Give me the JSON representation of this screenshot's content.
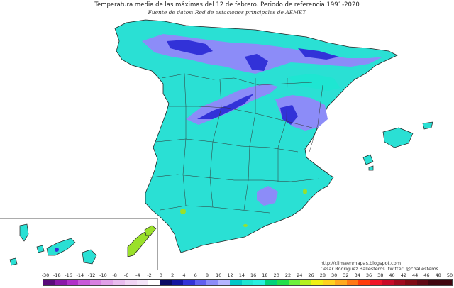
{
  "title": "Temperatura media de las máximas del 12 de febrero. Periodo de referencia 1991-2020",
  "subtitle": "Fuente de datos: Red de estaciones principales de AEMET",
  "credits": {
    "url": "http://climaenmapas.blogspot.com",
    "author": "César Rodríguez Ballesteros. twitter: @cballesteros"
  },
  "legend": {
    "labels": [
      "-30",
      "-18",
      "-16",
      "-14",
      "-12",
      "-10",
      "-8",
      "-6",
      "-4",
      "-2",
      "0",
      "2",
      "4",
      "6",
      "8",
      "10",
      "12",
      "14",
      "16",
      "18",
      "20",
      "22",
      "24",
      "26",
      "28",
      "30",
      "32",
      "34",
      "36",
      "38",
      "40",
      "42",
      "44",
      "46",
      "48",
      "50"
    ],
    "colors": [
      "#5a0a7a",
      "#8a18a8",
      "#b030c8",
      "#c85ad8",
      "#d880e0",
      "#e0a0e8",
      "#e8bcee",
      "#f0d4f4",
      "#f4e4f8",
      "#ffffff",
      "#0a0a64",
      "#1414a0",
      "#3232d8",
      "#6060f0",
      "#8c8cf8",
      "#b4b4ff",
      "#00c8c8",
      "#1ee6d2",
      "#28f0e0",
      "#00d27a",
      "#22e04a",
      "#6ef03c",
      "#b4f01e",
      "#f0f014",
      "#ffd21e",
      "#ffaa1e",
      "#ff7814",
      "#ff3c0a",
      "#f01428",
      "#c80a28",
      "#a00a1e",
      "#800a14",
      "#600814",
      "#400610",
      "#400610"
    ]
  },
  "colors": {
    "sea": "#ffffff",
    "land_main": "#2ae0d4",
    "cold_zone": "#8c8cf8",
    "very_cold": "#3232d8",
    "warm_zone": "#9ae02a",
    "border": "#222222"
  }
}
